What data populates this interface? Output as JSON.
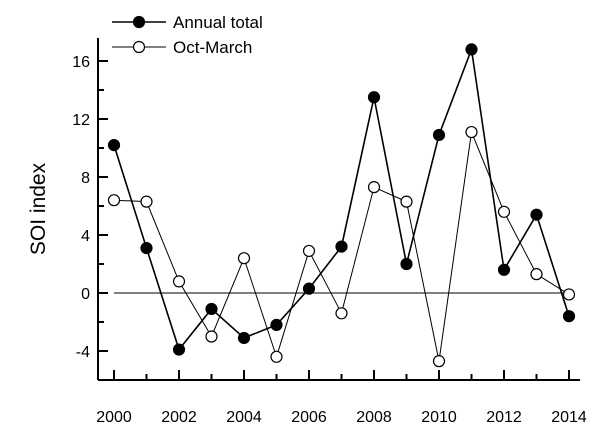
{
  "chart_data": {
    "type": "line",
    "title": "",
    "xlabel": "",
    "ylabel": "SOI index",
    "xlim": [
      2000,
      2014
    ],
    "ylim": [
      -6,
      18
    ],
    "x_ticks": [
      2000,
      2002,
      2004,
      2006,
      2008,
      2010,
      2012,
      2014
    ],
    "y_ticks": [
      -4,
      0,
      4,
      8,
      12,
      16
    ],
    "grid": false,
    "legend_position": "top-left",
    "reference_line_y": 0,
    "x": [
      2000,
      2001,
      2002,
      2003,
      2004,
      2005,
      2006,
      2007,
      2008,
      2009,
      2010,
      2011,
      2012,
      2013,
      2014
    ],
    "series": [
      {
        "name": "Annual total",
        "marker": "filled-circle",
        "color": "#000000",
        "values": [
          10.2,
          3.1,
          -3.9,
          -1.1,
          -3.1,
          -2.2,
          0.3,
          3.2,
          13.5,
          2.0,
          10.9,
          16.8,
          1.6,
          5.4,
          -1.6
        ]
      },
      {
        "name": "Oct-March",
        "marker": "open-circle",
        "color": "#000000",
        "values": [
          6.4,
          6.3,
          0.8,
          -3.0,
          2.4,
          -4.4,
          2.9,
          -1.4,
          7.3,
          6.3,
          -4.7,
          11.1,
          5.6,
          1.3,
          -0.1
        ]
      }
    ]
  }
}
